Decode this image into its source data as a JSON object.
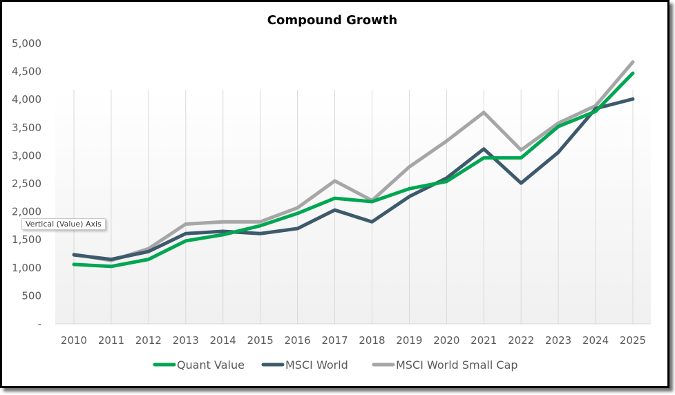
{
  "chart_data": {
    "type": "line",
    "title": "Compound Growth",
    "xlabel": "",
    "ylabel": "",
    "x": [
      "2010",
      "2011",
      "2012",
      "2013",
      "2014",
      "2015",
      "2016",
      "2017",
      "2018",
      "2019",
      "2020",
      "2021",
      "2022",
      "2023",
      "2024",
      "2025"
    ],
    "ylim": [
      0,
      5000
    ],
    "yticks": [
      0,
      500,
      1000,
      1500,
      2000,
      2500,
      3000,
      3500,
      4000,
      4500,
      5000
    ],
    "ytick_labels": [
      "-",
      "500",
      "1,000",
      "1,500",
      "2,000",
      "2,500",
      "3,000",
      "3,500",
      "4,000",
      "4,500",
      "5,000"
    ],
    "grid": "vertical",
    "legend_position": "bottom",
    "series": [
      {
        "name": "Quant Value",
        "color": "#00A651",
        "values": [
          1060,
          1025,
          1150,
          1480,
          1590,
          1750,
          1970,
          2240,
          2180,
          2410,
          2540,
          2960,
          2960,
          3520,
          3790,
          4470
        ]
      },
      {
        "name": "MSCI World",
        "color": "#3D5A6C",
        "values": [
          1230,
          1150,
          1290,
          1610,
          1650,
          1610,
          1700,
          2030,
          1820,
          2270,
          2600,
          3120,
          2510,
          3060,
          3840,
          4010
        ]
      },
      {
        "name": "MSCI World Small Cap",
        "color": "#A6A6A6",
        "values": [
          1240,
          1130,
          1340,
          1780,
          1820,
          1820,
          2070,
          2550,
          2200,
          2800,
          3260,
          3770,
          3100,
          3580,
          3890,
          4670
        ]
      }
    ]
  },
  "tooltip": {
    "text": "Vertical (Value) Axis"
  }
}
